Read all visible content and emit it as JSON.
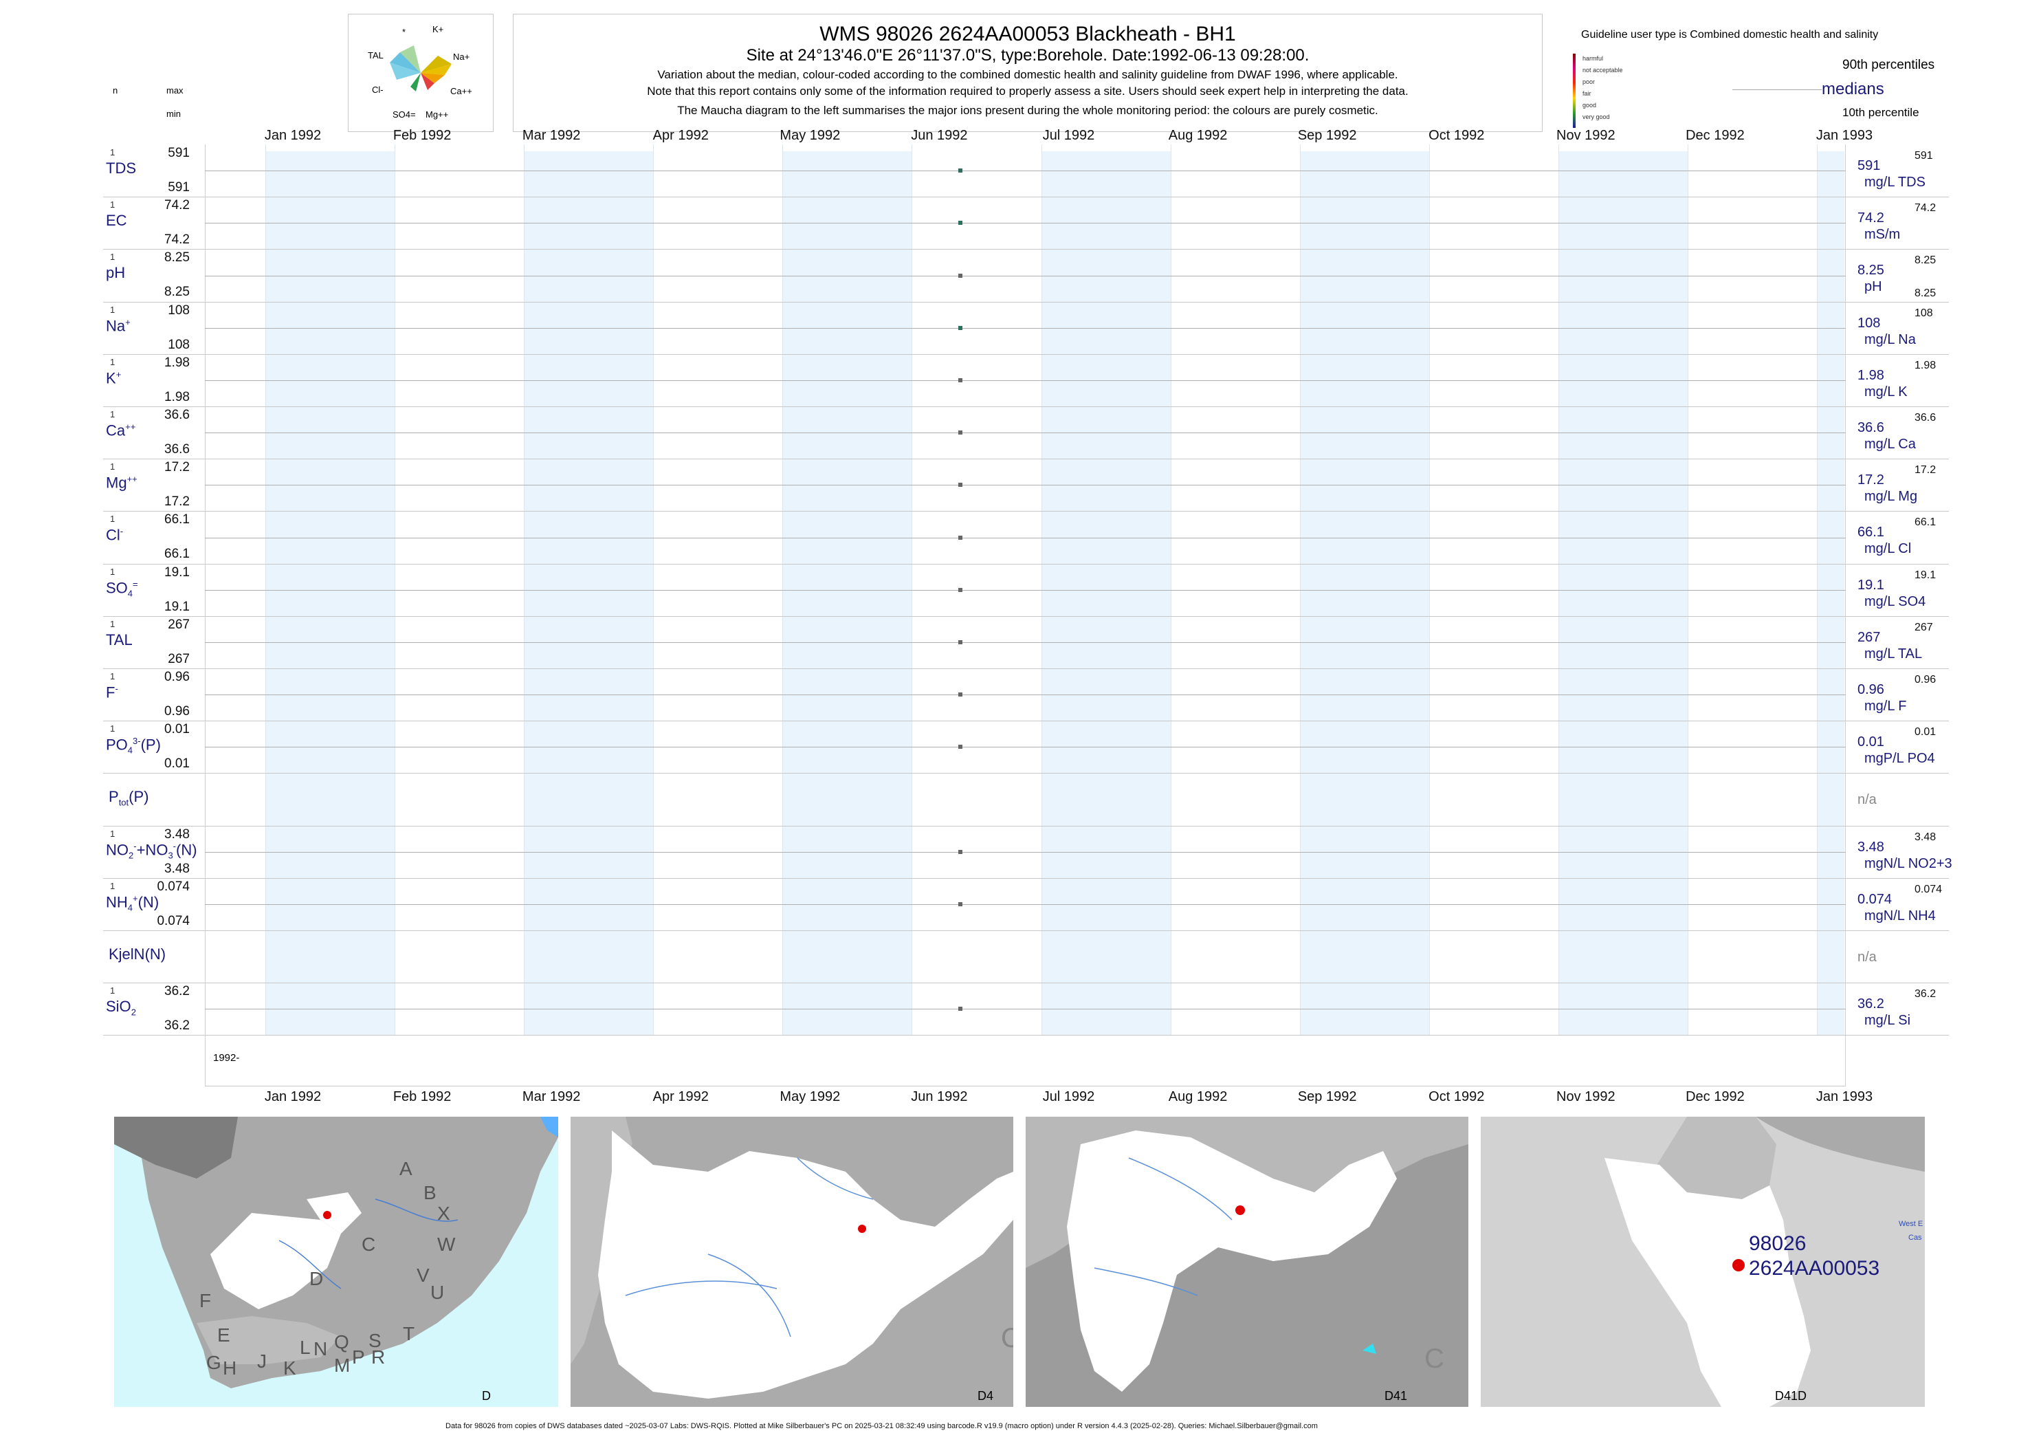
{
  "header": {
    "title": "WMS 98026 2624AA00053 Blackheath - BH1",
    "subtitle": "Site at 24°13'46.0\"E 26°11'37.0\"S, type:Borehole. Date:1992-06-13 09:28:00.",
    "note1": "Variation about the median,  colour-coded according to the combined domestic health and salinity guideline from DWAF 1996, where applicable.",
    "note2": "Note that this report contains only some of the information required to properly assess a site. Users should seek expert help in interpreting the data.",
    "note3": "The Maucha diagram to the left summarises the major ions present during the whole monitoring period: the colours are purely cosmetic.",
    "guideline": "Guideline user type is Combined domestic health and salinity",
    "p90": "90th percentiles",
    "medians": "medians",
    "p10": "10th percentile",
    "col_n": "n",
    "col_max": "max",
    "col_min": "min"
  },
  "maucha": {
    "labels": [
      "*",
      "K+",
      "TAL",
      "Na+",
      "Cl-",
      "Ca++",
      "SO4=",
      "Mg++"
    ]
  },
  "legend_classes": [
    {
      "label": "harmful",
      "color": "#8b0000"
    },
    {
      "label": "not acceptable",
      "color": "#e0007a"
    },
    {
      "label": "poor",
      "color": "#ff2a00"
    },
    {
      "label": "fair",
      "color": "#ffd400"
    },
    {
      "label": "good",
      "color": "#2aa02a"
    },
    {
      "label": "very good",
      "color": "#1a1aa0"
    }
  ],
  "months_top": [
    "Jan 1992",
    "Feb 1992",
    "Mar 1992",
    "Apr 1992",
    "May 1992",
    "Jun 1992",
    "Jul 1992",
    "Aug 1992",
    "Sep 1992",
    "Oct 1992",
    "Nov 1992",
    "Dec 1992",
    "Jan 1993"
  ],
  "months_bottom": [
    "Jan 1992",
    "Feb 1992",
    "Mar 1992",
    "Apr 1992",
    "May 1992",
    "Jun 1992",
    "Jul 1992",
    "Aug 1992",
    "Sep 1992",
    "Oct 1992",
    "Nov 1992",
    "Dec 1992",
    "Jan 1993"
  ],
  "year_label": "1992-",
  "chart_data": {
    "type": "scatter",
    "x_range": [
      "1992-01-01",
      "1993-01-01"
    ],
    "sample_date": "1992-06-13",
    "series": [
      {
        "name": "TDS",
        "n": "1",
        "max": "591",
        "min": "591",
        "median": "591",
        "p90": "591",
        "unit": "mg/L TDS",
        "value": 591,
        "color": "#2f6f5f"
      },
      {
        "name": "EC",
        "n": "1",
        "max": "74.2",
        "min": "74.2",
        "median": "74.2",
        "p90": "74.2",
        "unit": "mS/m",
        "value": 74.2,
        "color": "#2f6f5f"
      },
      {
        "name": "pH",
        "n": "1",
        "max": "8.25",
        "min": "8.25",
        "median": "8.25",
        "p90": "8.25",
        "p10": "8.25",
        "unit": "pH",
        "value": 8.25,
        "color": "#666666"
      },
      {
        "name": "Na+",
        "n": "1",
        "max": "108",
        "min": "108",
        "median": "108",
        "p90": "108",
        "unit": "mg/L Na",
        "value": 108,
        "color": "#2f6f5f"
      },
      {
        "name": "K+",
        "n": "1",
        "max": "1.98",
        "min": "1.98",
        "median": "1.98",
        "p90": "1.98",
        "unit": "mg/L K",
        "value": 1.98,
        "color": "#666666"
      },
      {
        "name": "Ca++",
        "n": "1",
        "max": "36.6",
        "min": "36.6",
        "median": "36.6",
        "p90": "36.6",
        "unit": "mg/L Ca",
        "value": 36.6,
        "color": "#666666"
      },
      {
        "name": "Mg++",
        "n": "1",
        "max": "17.2",
        "min": "17.2",
        "median": "17.2",
        "p90": "17.2",
        "unit": "mg/L Mg",
        "value": 17.2,
        "color": "#666666"
      },
      {
        "name": "Cl-",
        "n": "1",
        "max": "66.1",
        "min": "66.1",
        "median": "66.1",
        "p90": "66.1",
        "unit": "mg/L Cl",
        "value": 66.1,
        "color": "#666666"
      },
      {
        "name": "SO4=",
        "n": "1",
        "max": "19.1",
        "min": "19.1",
        "median": "19.1",
        "p90": "19.1",
        "unit": "mg/L SO4",
        "value": 19.1,
        "color": "#666666"
      },
      {
        "name": "TAL",
        "n": "1",
        "max": "267",
        "min": "267",
        "median": "267",
        "p90": "267",
        "unit": "mg/L TAL",
        "value": 267,
        "color": "#666666"
      },
      {
        "name": "F-",
        "n": "1",
        "max": "0.96",
        "min": "0.96",
        "median": "0.96",
        "p90": "0.96",
        "unit": "mg/L F",
        "value": 0.96,
        "color": "#666666"
      },
      {
        "name": "PO4(P)",
        "n": "1",
        "max": "0.01",
        "min": "0.01",
        "median": "0.01",
        "p90": "0.01",
        "unit": "mgP/L PO4",
        "value": 0.01,
        "color": "#666666"
      },
      {
        "name": "Ptot(P)",
        "n": "",
        "max": "",
        "min": "",
        "median": "n/a",
        "p90": "",
        "unit": "",
        "value": null,
        "color": "#666666"
      },
      {
        "name": "NO2+NO3(N)",
        "n": "1",
        "max": "3.48",
        "min": "3.48",
        "median": "3.48",
        "p90": "3.48",
        "unit": "mgN/L NO2+3",
        "value": 3.48,
        "color": "#666666"
      },
      {
        "name": "NH4(N)",
        "n": "1",
        "max": "0.074",
        "min": "0.074",
        "median": "0.074",
        "p90": "0.074",
        "unit": "mgN/L NH4",
        "value": 0.074,
        "color": "#666666"
      },
      {
        "name": "KjelN(N)",
        "n": "",
        "max": "",
        "min": "",
        "median": "n/a",
        "p90": "",
        "unit": "",
        "value": null,
        "color": "#666666"
      },
      {
        "name": "SiO2",
        "n": "1",
        "max": "36.2",
        "min": "36.2",
        "median": "36.2",
        "p90": "36.2",
        "unit": "mg/L Si",
        "value": 36.2,
        "color": "#666666"
      }
    ]
  },
  "maps": [
    {
      "caption": "D",
      "regions": [
        "A",
        "B",
        "X",
        "W",
        "C",
        "V",
        "U",
        "D",
        "T",
        "F",
        "E",
        "G",
        "H",
        "J",
        "K",
        "L",
        "N",
        "Q",
        "M",
        "P",
        "S",
        "R"
      ]
    },
    {
      "caption": "D4",
      "regions": [
        "C"
      ]
    },
    {
      "caption": "D41",
      "regions": [
        "C"
      ]
    },
    {
      "caption": "D41D",
      "site_id": "98026",
      "site_code": "2624AA00053",
      "place1": "West E",
      "place2": "Cas"
    }
  ],
  "footer": "Data for 98026 from copies of DWS databases dated ~2025-03-07 Labs: DWS-RQIS. Plotted at Mike Silberbauer's PC on 2025-03-21 08:32:49 using barcode.R v19.9 (macro option) under R version 4.4.3 (2025-02-28). Queries: Michael.Silberbauer@gmail.com"
}
